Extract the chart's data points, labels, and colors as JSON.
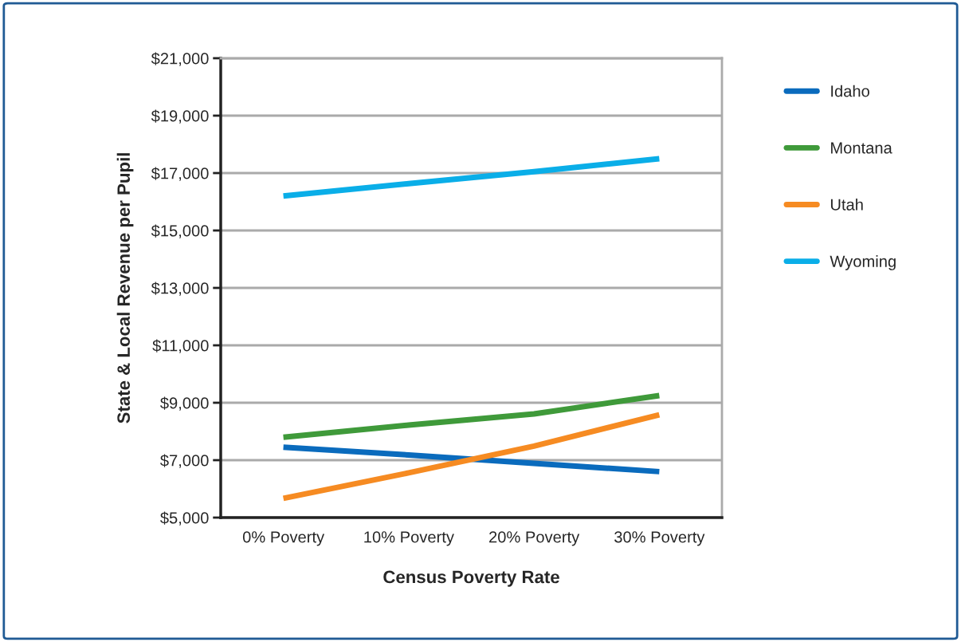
{
  "chart_data": {
    "type": "line",
    "categories": [
      "0% Poverty",
      "10% Poverty",
      "20% Poverty",
      "30% Poverty"
    ],
    "series": [
      {
        "name": "Idaho",
        "color": "#0a6bbd",
        "values": [
          7450,
          7180,
          6890,
          6600
        ]
      },
      {
        "name": "Montana",
        "color": "#3f9a3a",
        "values": [
          7800,
          8220,
          8610,
          9250
        ]
      },
      {
        "name": "Utah",
        "color": "#f68b22",
        "values": [
          5670,
          6560,
          7490,
          8580
        ]
      },
      {
        "name": "Wyoming",
        "color": "#0aaee8",
        "values": [
          16200,
          16630,
          17050,
          17500
        ]
      }
    ],
    "xlabel": "Census Poverty Rate",
    "ylabel": "State & Local Revenue per Pupil",
    "ylim": [
      5000,
      21000
    ],
    "yticks": [
      {
        "value": 5000,
        "label": "$5,000"
      },
      {
        "value": 7000,
        "label": "$7,000"
      },
      {
        "value": 9000,
        "label": "$9,000"
      },
      {
        "value": 11000,
        "label": "$11,000"
      },
      {
        "value": 13000,
        "label": "$13,000"
      },
      {
        "value": 15000,
        "label": "$15,000"
      },
      {
        "value": 17000,
        "label": "$17,000"
      },
      {
        "value": 19000,
        "label": "$19,000"
      },
      {
        "value": 21000,
        "label": "$21,000"
      }
    ],
    "grid": "y",
    "legend": "right",
    "marker": "none",
    "line_style": "solid"
  }
}
